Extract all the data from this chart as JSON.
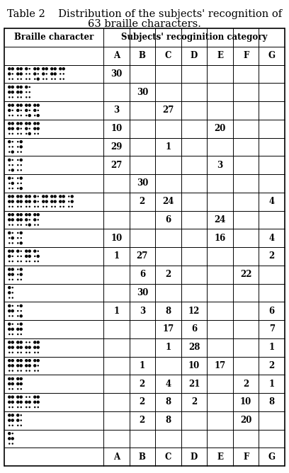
{
  "title_line1": "Table 2    Distribution of the subjects' recognition of",
  "title_line2": "63 braille characters.",
  "header_col": "Braille character",
  "header_span": "Subjects' recoginition category",
  "col_headers": [
    "A",
    "B",
    "C",
    "D",
    "E",
    "F",
    "G"
  ],
  "data": [
    [
      "30",
      "",
      "",
      "",
      "",
      "",
      ""
    ],
    [
      "",
      "30",
      "",
      "",
      "",
      "",
      ""
    ],
    [
      "3",
      "",
      "27",
      "",
      "",
      "",
      ""
    ],
    [
      "10",
      "",
      "",
      "",
      "20",
      "",
      ""
    ],
    [
      "29",
      "",
      "1",
      "",
      "",
      "",
      ""
    ],
    [
      "27",
      "",
      "",
      "",
      "3",
      "",
      ""
    ],
    [
      "",
      "30",
      "",
      "",
      "",
      "",
      ""
    ],
    [
      "",
      "2",
      "24",
      "",
      "",
      "",
      "4"
    ],
    [
      "",
      "",
      "6",
      "",
      "24",
      "",
      ""
    ],
    [
      "10",
      "",
      "",
      "",
      "16",
      "",
      "4"
    ],
    [
      "1",
      "27",
      "",
      "",
      "",
      "",
      "2"
    ],
    [
      "",
      "6",
      "2",
      "",
      "",
      "22",
      ""
    ],
    [
      "",
      "30",
      "",
      "",
      "",
      "",
      ""
    ],
    [
      "1",
      "3",
      "8",
      "12",
      "",
      "",
      "6"
    ],
    [
      "",
      "",
      "17",
      "6",
      "",
      "",
      "7"
    ],
    [
      "",
      "",
      "1",
      "28",
      "",
      "",
      "1"
    ],
    [
      "",
      "1",
      "",
      "10",
      "17",
      "",
      "2"
    ],
    [
      "",
      "2",
      "4",
      "21",
      "",
      "2",
      "1"
    ],
    [
      "",
      "2",
      "8",
      "2",
      "",
      "10",
      "8"
    ],
    [
      "",
      "2",
      "8",
      "",
      "",
      "20",
      ""
    ],
    [
      "",
      "",
      "",
      "",
      "",
      "",
      ""
    ]
  ],
  "bg_color": "#ffffff",
  "text_color": "#000000",
  "line_color": "#000000"
}
